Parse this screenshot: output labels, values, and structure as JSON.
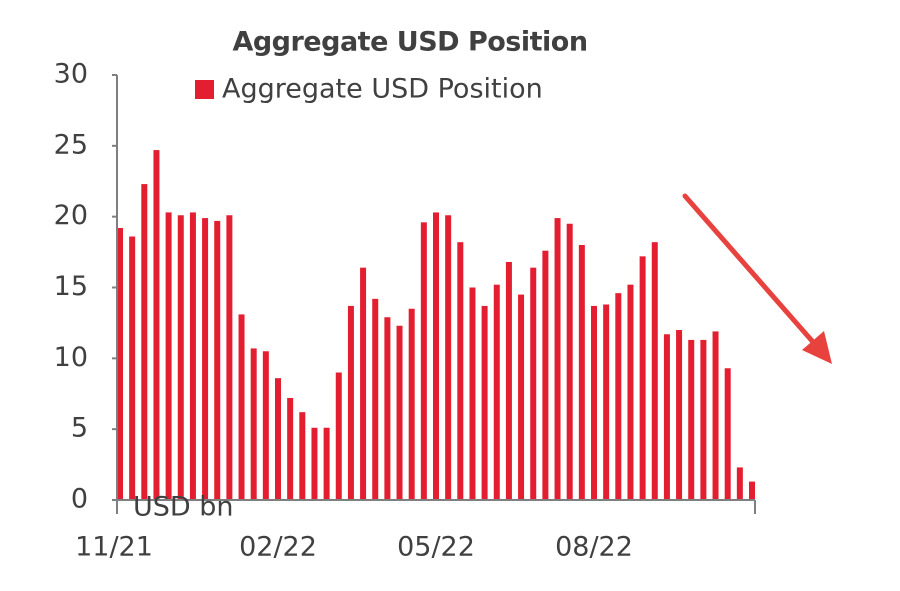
{
  "chart_data": {
    "type": "bar",
    "title": "Aggregate USD Position",
    "y_label": "USD bn",
    "categories": [
      "11/21",
      null,
      null,
      null,
      null,
      null,
      null,
      null,
      null,
      null,
      null,
      null,
      null,
      "02/22",
      null,
      null,
      null,
      null,
      null,
      null,
      null,
      null,
      null,
      null,
      null,
      null,
      "05/22",
      null,
      null,
      null,
      null,
      null,
      null,
      null,
      null,
      null,
      null,
      null,
      null,
      "08/22",
      null,
      null,
      null,
      null,
      null,
      null,
      null,
      null,
      null,
      null,
      null,
      null,
      null
    ],
    "series": [
      {
        "name": "Aggregate USD Position",
        "color": "#e31e30",
        "values": [
          19.2,
          18.6,
          22.3,
          24.7,
          20.3,
          20.1,
          20.3,
          19.9,
          19.7,
          20.1,
          13.1,
          10.7,
          10.5,
          8.6,
          7.2,
          6.2,
          5.1,
          5.1,
          9.0,
          13.7,
          16.4,
          14.2,
          12.9,
          12.3,
          13.5,
          19.6,
          20.3,
          20.1,
          18.2,
          15.0,
          13.7,
          15.2,
          16.8,
          14.5,
          16.4,
          17.6,
          19.9,
          19.5,
          18.0,
          13.7,
          13.8,
          14.6,
          15.2,
          17.2,
          18.2,
          11.7,
          12.0,
          11.3,
          11.3,
          11.9,
          9.3,
          2.3,
          1.3
        ]
      }
    ],
    "ylim": [
      0,
      30
    ],
    "yticks": [
      0,
      5,
      10,
      15,
      20,
      25,
      30
    ],
    "grid": false,
    "legend": "top"
  }
}
